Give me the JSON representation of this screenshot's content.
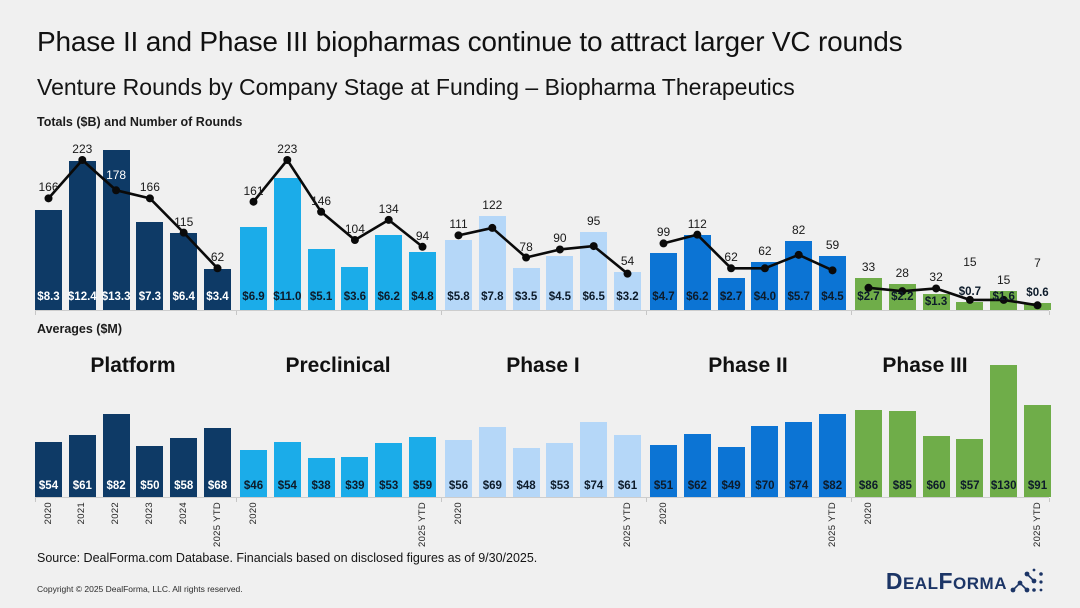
{
  "header": {
    "title": "Phase II and Phase III biopharmas continue to attract larger VC rounds",
    "subtitle": "Venture Rounds by Company Stage at Funding – Biopharma Therapeutics"
  },
  "chart_labels": {
    "top": "Totals ($B) and Number of Rounds",
    "bottom": "Averages ($M)"
  },
  "stages": [
    "Platform",
    "Preclinical",
    "Phase I",
    "Phase II",
    "Phase III"
  ],
  "stage_colors": {
    "Platform": {
      "fill": "#0e3a66",
      "label": "#ffffff"
    },
    "Preclinical": {
      "fill": "#1bace9",
      "label": "#0d1b2a"
    },
    "Phase I": {
      "fill": "#b5d7f8",
      "label": "#0d1b2a"
    },
    "Phase II": {
      "fill": "#0c74d4",
      "label": "#0d1b2a"
    },
    "Phase III": {
      "fill": "#6fad49",
      "label": "#0d1b2a"
    }
  },
  "line_color": "#0a0a0a",
  "chart_data": [
    {
      "type": "bar+line",
      "title": "Totals ($B) and Number of Rounds",
      "bar_unit": "$B",
      "line_unit": "number of rounds",
      "categories": [
        "2020",
        "2021",
        "2022",
        "2023",
        "2024",
        "2025 YTD"
      ],
      "ylim_bar": [
        0,
        13.3
      ],
      "ylim_line": [
        0,
        223
      ],
      "legend": "off",
      "series": [
        {
          "name": "Platform",
          "totals_b": [
            8.3,
            12.4,
            13.3,
            7.3,
            6.4,
            3.4
          ],
          "rounds": [
            166,
            223,
            178,
            166,
            115,
            62
          ]
        },
        {
          "name": "Preclinical",
          "totals_b": [
            6.9,
            11.0,
            5.1,
            3.6,
            6.2,
            4.8
          ],
          "rounds": [
            161,
            223,
            146,
            104,
            134,
            94
          ]
        },
        {
          "name": "Phase I",
          "totals_b": [
            5.8,
            7.8,
            3.5,
            4.5,
            6.5,
            3.2
          ],
          "rounds": [
            111,
            122,
            78,
            90,
            95,
            54
          ]
        },
        {
          "name": "Phase II",
          "totals_b": [
            4.7,
            6.2,
            2.7,
            4.0,
            5.7,
            4.5
          ],
          "rounds": [
            99,
            112,
            62,
            62,
            82,
            59
          ]
        },
        {
          "name": "Phase III",
          "totals_b": [
            2.7,
            2.2,
            1.3,
            0.7,
            1.6,
            0.6
          ],
          "rounds": [
            33,
            28,
            32,
            15,
            15,
            7
          ]
        }
      ]
    },
    {
      "type": "bar",
      "title": "Averages ($M)",
      "bar_unit": "$M",
      "categories": [
        "2020",
        "2021",
        "2022",
        "2023",
        "2024",
        "2025 YTD"
      ],
      "ylim": [
        0,
        130
      ],
      "legend": "off",
      "series": [
        {
          "name": "Platform",
          "values": [
            54,
            61,
            82,
            50,
            58,
            68
          ]
        },
        {
          "name": "Preclinical",
          "values": [
            46,
            54,
            38,
            39,
            53,
            59
          ]
        },
        {
          "name": "Phase I",
          "values": [
            56,
            69,
            48,
            53,
            74,
            61
          ]
        },
        {
          "name": "Phase II",
          "values": [
            51,
            62,
            49,
            70,
            74,
            82
          ]
        },
        {
          "name": "Phase III",
          "values": [
            86,
            85,
            60,
            57,
            130,
            91
          ]
        }
      ]
    }
  ],
  "footer": {
    "source": "Source: DealForma.com Database. Financials based on disclosed figures as of 9/30/2025.",
    "copyright": "Copyright © 2025 DealForma, LLC. All rights reserved.",
    "logo_text": "DealForma"
  }
}
